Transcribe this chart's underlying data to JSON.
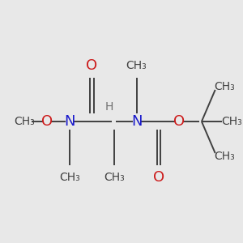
{
  "bg_color": "#e8e8e8",
  "bond_color": "#404040",
  "N_color": "#1a1acc",
  "O_color": "#cc1a1a",
  "H_color": "#707070",
  "C_color": "#404040",
  "font_size": 13,
  "small_font_size": 10,
  "xlim": [
    0.0,
    5.4
  ],
  "ylim": [
    0.0,
    3.0
  ]
}
